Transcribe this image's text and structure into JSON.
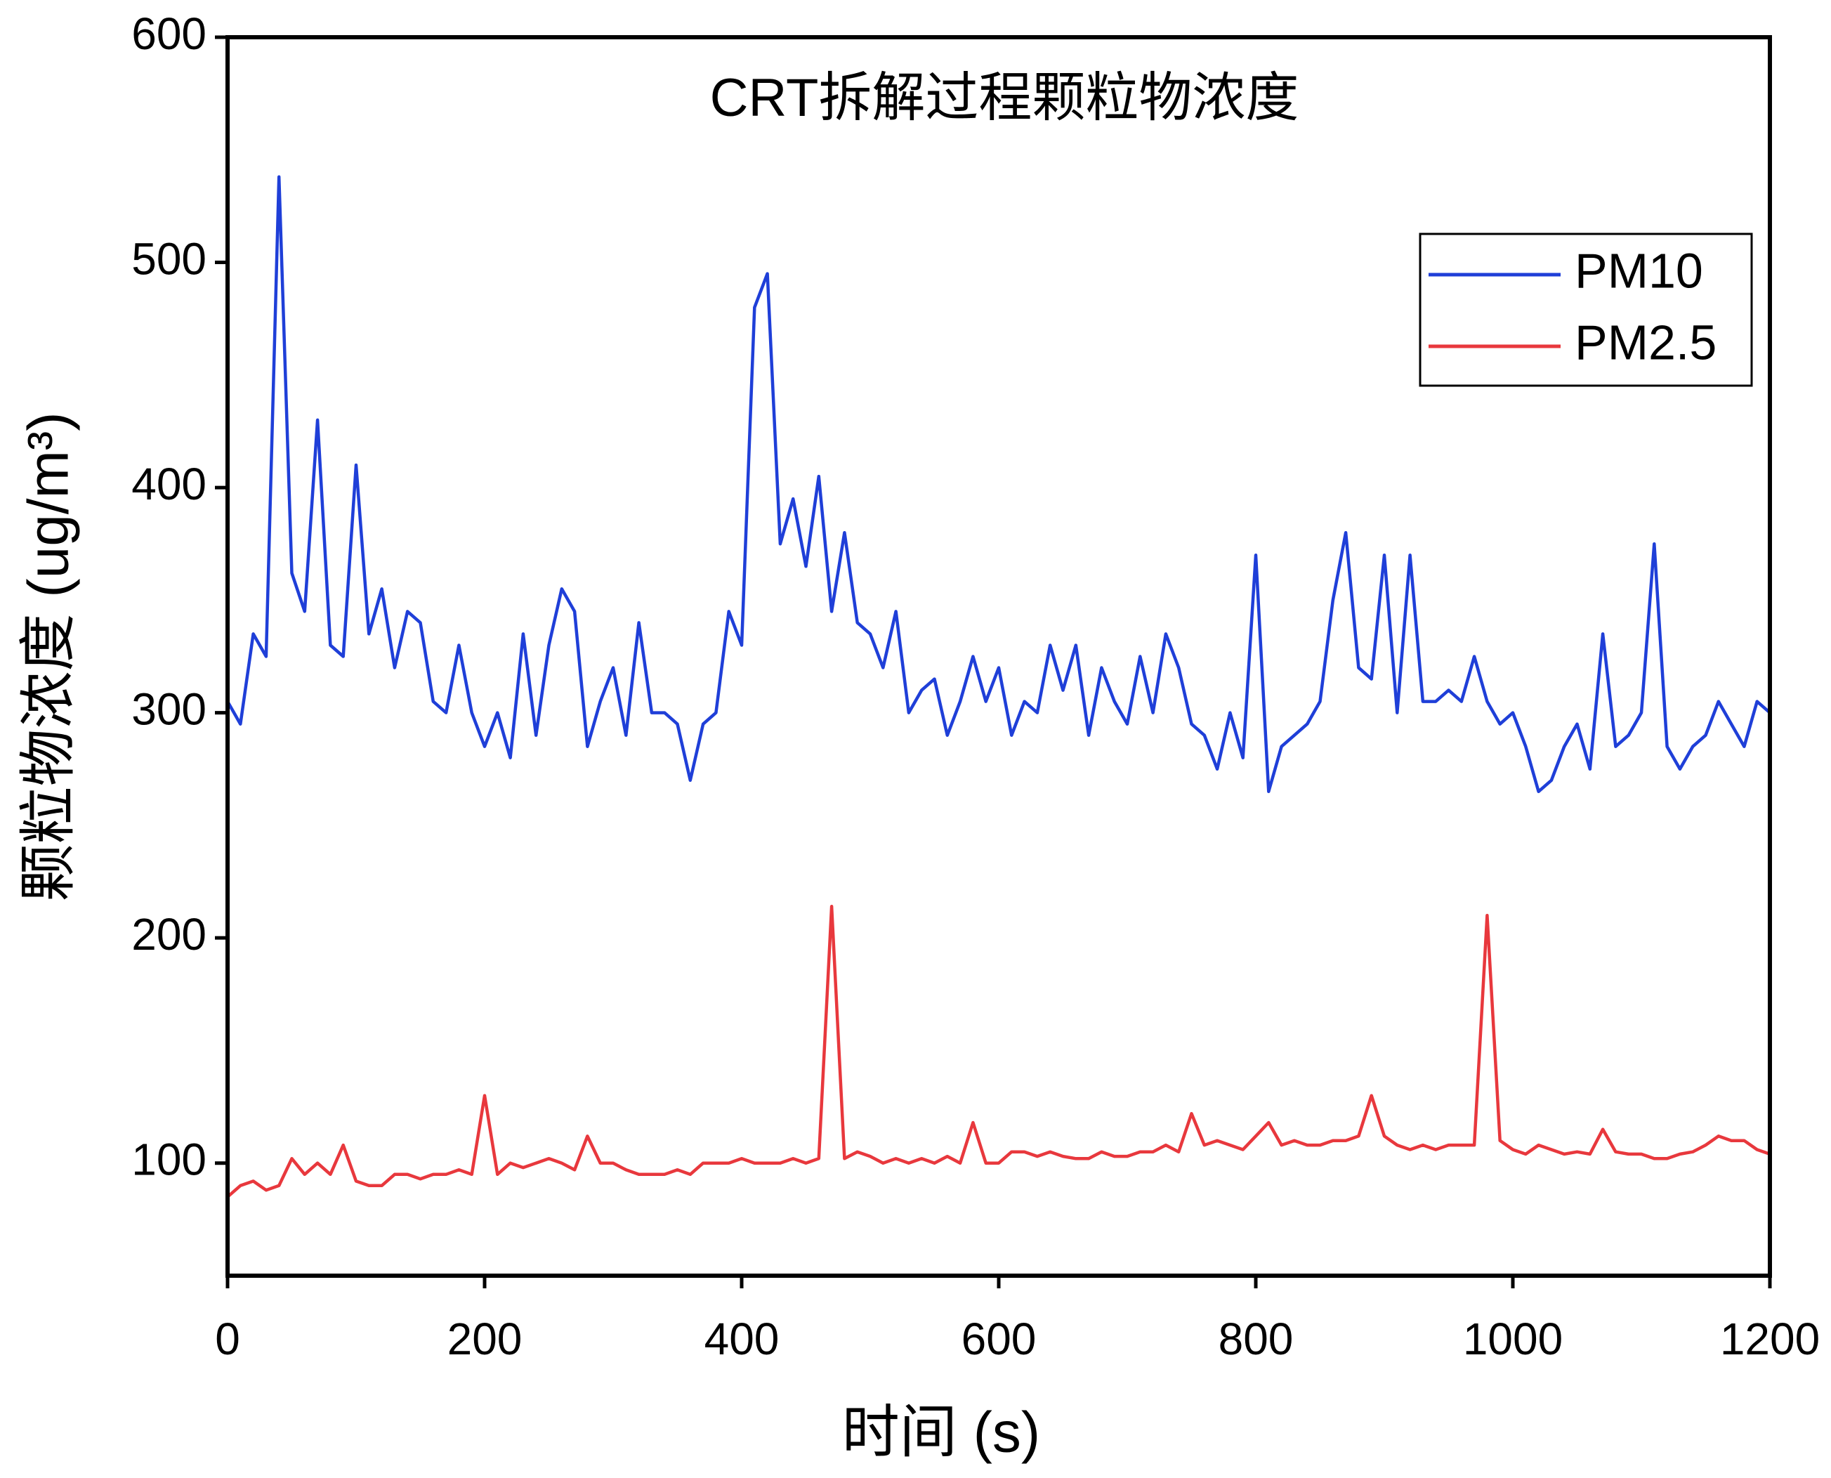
{
  "chart_data": {
    "type": "line",
    "title": "CRT拆解过程颗粒物浓度",
    "x_label": "时间 (s)",
    "y_label": "颗粒物浓度 (ug/m³)",
    "x": [
      0,
      10,
      20,
      30,
      40,
      50,
      60,
      70,
      80,
      90,
      100,
      110,
      120,
      130,
      140,
      150,
      160,
      170,
      180,
      190,
      200,
      210,
      220,
      230,
      240,
      250,
      260,
      270,
      280,
      290,
      300,
      310,
      320,
      330,
      340,
      350,
      360,
      370,
      380,
      390,
      400,
      410,
      420,
      430,
      440,
      450,
      460,
      470,
      480,
      490,
      500,
      510,
      520,
      530,
      540,
      550,
      560,
      570,
      580,
      590,
      600,
      610,
      620,
      630,
      640,
      650,
      660,
      670,
      680,
      690,
      700,
      710,
      720,
      730,
      740,
      750,
      760,
      770,
      780,
      790,
      800,
      810,
      820,
      830,
      840,
      850,
      860,
      870,
      880,
      890,
      900,
      910,
      920,
      930,
      940,
      950,
      960,
      970,
      980,
      990,
      1000,
      1010,
      1020,
      1030,
      1040,
      1050,
      1060,
      1070,
      1080,
      1090,
      1100,
      1110,
      1120,
      1130,
      1140,
      1150,
      1160,
      1170,
      1180,
      1190,
      1200
    ],
    "series": [
      {
        "name": "PM10",
        "color": "#1f3fd8",
        "values": [
          305,
          295,
          335,
          325,
          538,
          362,
          345,
          430,
          330,
          325,
          410,
          335,
          355,
          320,
          345,
          340,
          305,
          300,
          330,
          300,
          285,
          300,
          280,
          335,
          290,
          330,
          355,
          345,
          285,
          305,
          320,
          290,
          340,
          300,
          300,
          295,
          270,
          295,
          300,
          345,
          330,
          480,
          495,
          375,
          395,
          365,
          405,
          345,
          380,
          340,
          335,
          320,
          345,
          300,
          310,
          315,
          290,
          305,
          325,
          305,
          320,
          290,
          305,
          300,
          330,
          310,
          330,
          290,
          320,
          305,
          295,
          325,
          300,
          335,
          320,
          295,
          290,
          275,
          300,
          280,
          370,
          265,
          285,
          290,
          295,
          305,
          350,
          380,
          320,
          315,
          370,
          300,
          370,
          305,
          305,
          310,
          305,
          325,
          305,
          295,
          300,
          285,
          265,
          270,
          285,
          295,
          275,
          335,
          285,
          290,
          300,
          375,
          285,
          275,
          285,
          290,
          305,
          295,
          285,
          305,
          300
        ]
      },
      {
        "name": "PM2.5",
        "color": "#e8383d",
        "values": [
          85,
          90,
          92,
          88,
          90,
          102,
          95,
          100,
          95,
          108,
          92,
          90,
          90,
          95,
          95,
          93,
          95,
          95,
          97,
          95,
          130,
          95,
          100,
          98,
          100,
          102,
          100,
          97,
          112,
          100,
          100,
          97,
          95,
          95,
          95,
          97,
          95,
          100,
          100,
          100,
          102,
          100,
          100,
          100,
          102,
          100,
          102,
          214,
          102,
          105,
          103,
          100,
          102,
          100,
          102,
          100,
          103,
          100,
          118,
          100,
          100,
          105,
          105,
          103,
          105,
          103,
          102,
          102,
          105,
          103,
          103,
          105,
          105,
          108,
          105,
          122,
          108,
          110,
          108,
          106,
          112,
          118,
          108,
          110,
          108,
          108,
          110,
          110,
          112,
          130,
          112,
          108,
          106,
          108,
          106,
          108,
          108,
          108,
          210,
          110,
          106,
          104,
          108,
          106,
          104,
          105,
          104,
          115,
          105,
          104,
          104,
          102,
          102,
          104,
          105,
          108,
          112,
          110,
          110,
          106,
          104
        ]
      }
    ],
    "xlim": [
      0,
      1200
    ],
    "xticks": [
      0,
      200,
      400,
      600,
      800,
      1000,
      1200
    ],
    "ylim": [
      50,
      600
    ],
    "yticks": [
      100,
      200,
      300,
      400,
      500,
      600
    ],
    "legend": "upper right"
  }
}
